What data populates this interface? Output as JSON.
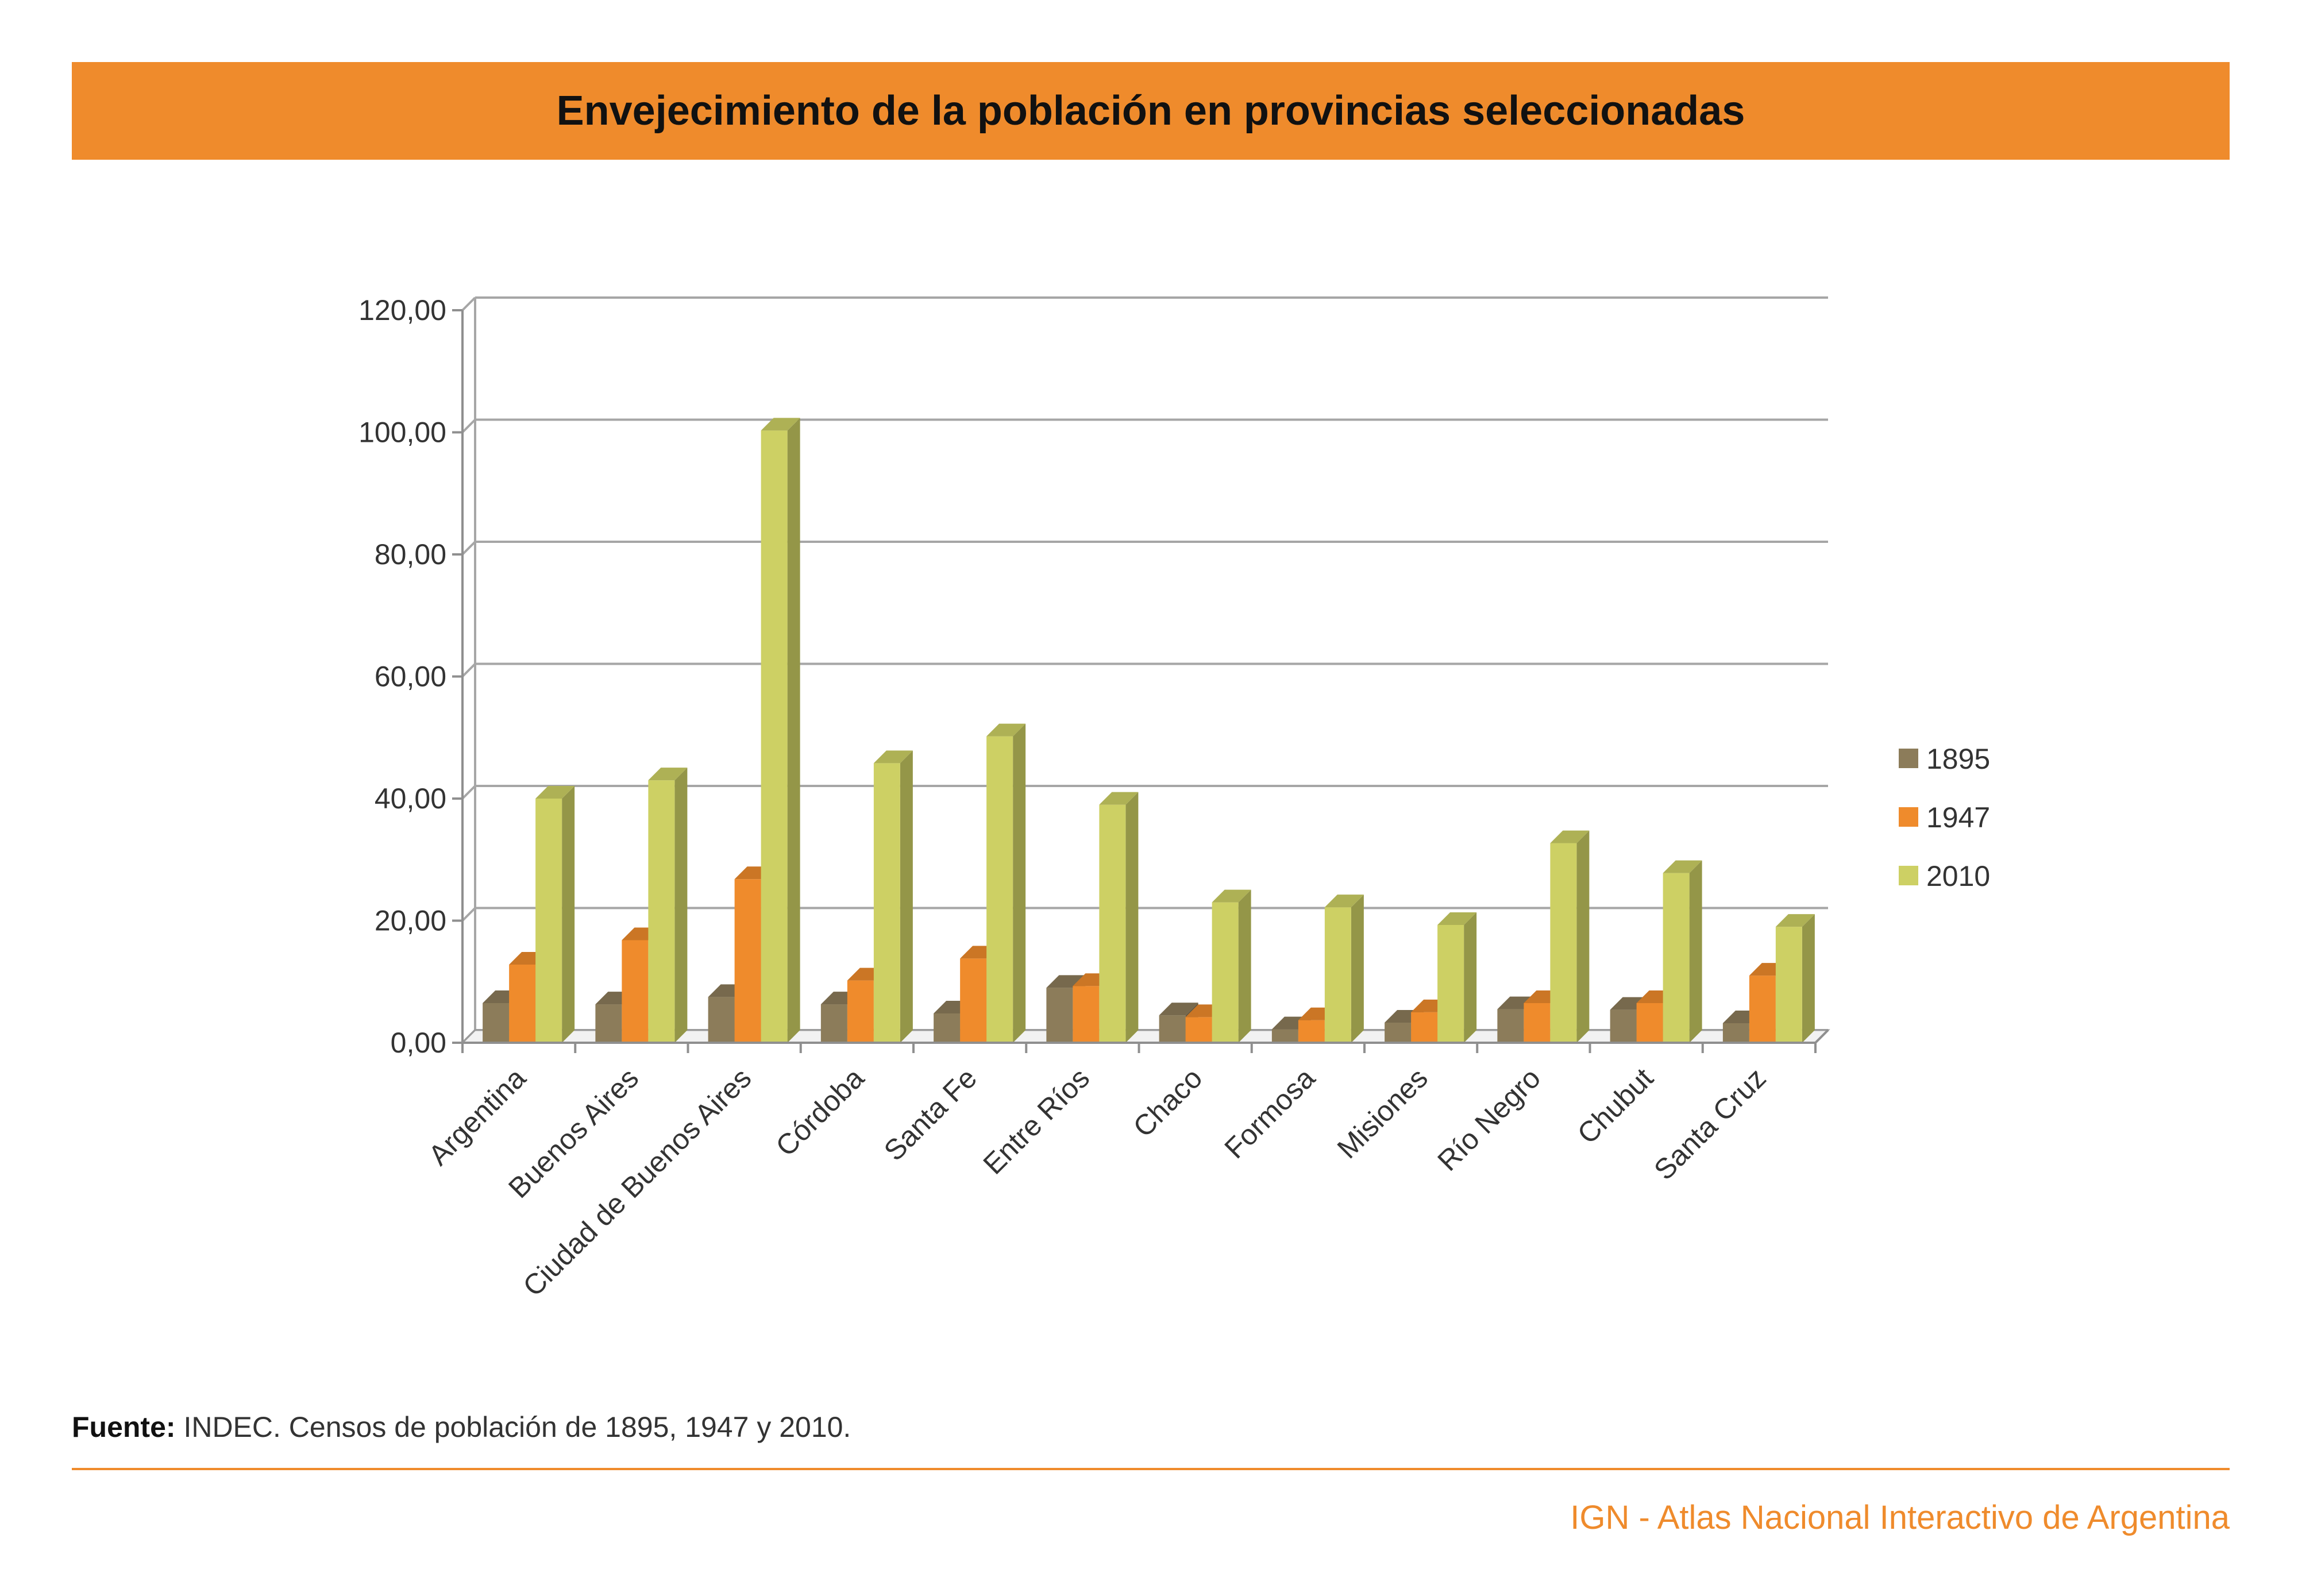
{
  "title": "Envejecimiento de la población en provincias seleccionadas",
  "source": {
    "prefix": "Fuente:",
    "text": " INDEC. Censos de población de 1895, 1947 y 2010."
  },
  "footer": {
    "credit": "IGN - Atlas Nacional Interactivo de Argentina"
  },
  "colors": {
    "accent": "#ef8b2c",
    "series_1895": "#8c7c5a",
    "series_1947": "#ef8b2c",
    "series_2010": "#cdd064"
  },
  "chart_data": {
    "type": "bar",
    "title": "Envejecimiento de la población en provincias seleccionadas",
    "xlabel": "",
    "ylabel": "",
    "ylim": [
      0,
      120
    ],
    "yticks": [
      "0,00",
      "20,00",
      "40,00",
      "60,00",
      "80,00",
      "100,00",
      "120,00"
    ],
    "grid": true,
    "legend_position": "right",
    "categories": [
      "Argentina",
      "Buenos Aires",
      "Ciudad de Buenos Aires",
      "Córdoba",
      "Santa Fe",
      "Entre Ríos",
      "Chaco",
      "Formosa",
      "Misiones",
      "Río Negro",
      "Chubut",
      "Santa Cruz"
    ],
    "series": [
      {
        "name": "1895",
        "color": "#8c7c5a",
        "values": [
          6.5,
          6.3,
          7.5,
          6.3,
          4.8,
          9.0,
          4.5,
          2.2,
          3.3,
          5.5,
          5.4,
          3.2
        ]
      },
      {
        "name": "1947",
        "color": "#ef8b2c",
        "values": [
          12.8,
          16.8,
          26.8,
          10.2,
          13.8,
          9.3,
          4.2,
          3.7,
          5.0,
          6.5,
          6.5,
          11.0
        ]
      },
      {
        "name": "2010",
        "color": "#cdd064",
        "values": [
          40.0,
          43.0,
          100.3,
          45.8,
          50.2,
          39.0,
          23.0,
          22.2,
          19.3,
          32.7,
          27.8,
          19.0
        ]
      }
    ]
  }
}
